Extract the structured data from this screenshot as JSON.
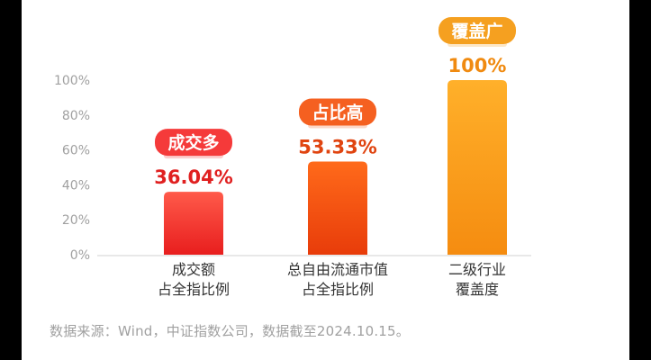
{
  "chart_data": {
    "type": "bar",
    "categories": [
      [
        "成交额",
        "占全指比例"
      ],
      [
        "总自由流通市值",
        "占全指比例"
      ],
      [
        "二级行业",
        "覆盖度"
      ]
    ],
    "values": [
      36.04,
      53.33,
      100
    ],
    "value_labels": [
      "36.04%",
      "53.33%",
      "100%"
    ],
    "tags": [
      "成交多",
      "占比高",
      "覆盖广"
    ],
    "yticks": [
      "0%",
      "20%",
      "40%",
      "60%",
      "80%",
      "100%"
    ],
    "ylim": [
      0,
      100
    ],
    "colors": {
      "bar1": [
        "#ff5a4a",
        "#e81e1e"
      ],
      "bar2": [
        "#ff6a1a",
        "#e83c0a"
      ],
      "bar3": [
        "#ffb02a",
        "#f58c10"
      ],
      "tag1": "#f53a3a",
      "tag2": "#f56020",
      "tag3": "#f5a020",
      "value1": "#e02020",
      "value2": "#e04410",
      "value3": "#f08a10",
      "tick": "#a0a0a0",
      "category": "#333333"
    }
  },
  "footer": {
    "source": "数据来源：Wind，中证指数公司，数据截至2024.10.15。"
  }
}
